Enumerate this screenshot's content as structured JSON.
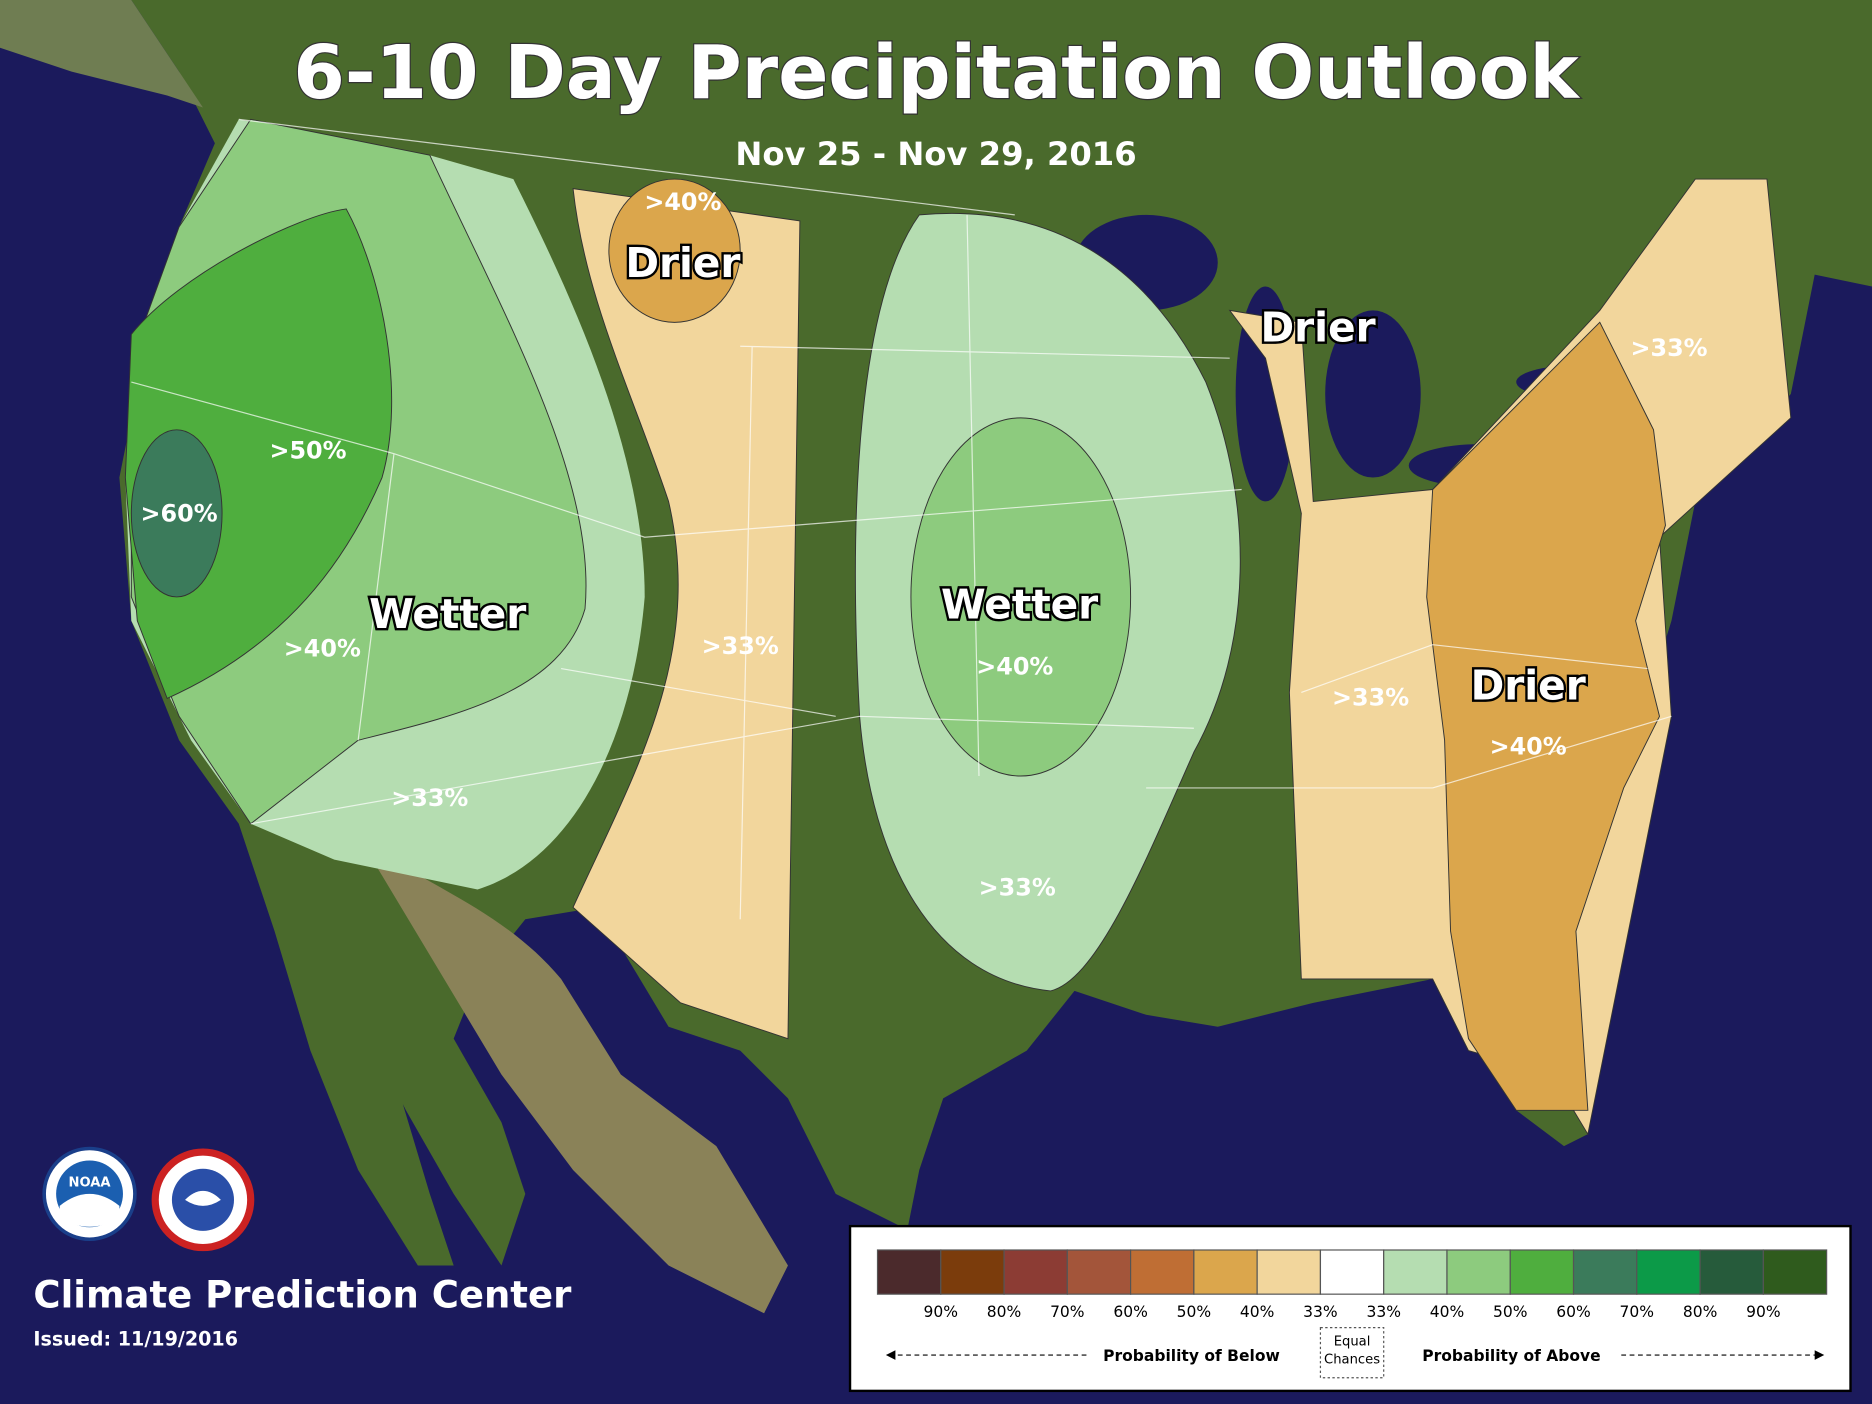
{
  "header": {
    "title": "6-10 Day Precipitation Outlook",
    "subtitle": "Nov 25 - Nov 29, 2016"
  },
  "regions": {
    "drier_labels": [
      "Drier",
      "Drier",
      "Drier"
    ],
    "wetter_labels": [
      "Wetter",
      "Wetter"
    ],
    "probability_labels": [
      ">40%",
      ">50%",
      ">60%",
      ">40%",
      ">33%",
      ">33%",
      ">40%",
      ">33%",
      ">33%",
      ">33%",
      ">40%"
    ]
  },
  "legend": {
    "colors": [
      "#4b2a2c",
      "#7b3c0c",
      "#8c3c34",
      "#a3553a",
      "#bf6e34",
      "#dba64c",
      "#f2d69c",
      "#ffffff",
      "#b5ddb1",
      "#8dcb7e",
      "#4fae3e",
      "#3b7b5b",
      "#0c9a48",
      "#265b3b",
      "#2f5b1d"
    ],
    "below_labels": [
      "90%",
      "80%",
      "70%",
      "60%",
      "50%",
      "40%",
      "33%"
    ],
    "above_labels": [
      "33%",
      "40%",
      "50%",
      "60%",
      "70%",
      "80%",
      "90%"
    ],
    "below_caption": "Probability of Below",
    "equal_caption": "Equal Chances",
    "above_caption": "Probability of Above"
  },
  "footer": {
    "agency": "Climate Prediction Center",
    "issued": "Issued: 11/19/2016",
    "noaa_logo": "NOAA"
  }
}
